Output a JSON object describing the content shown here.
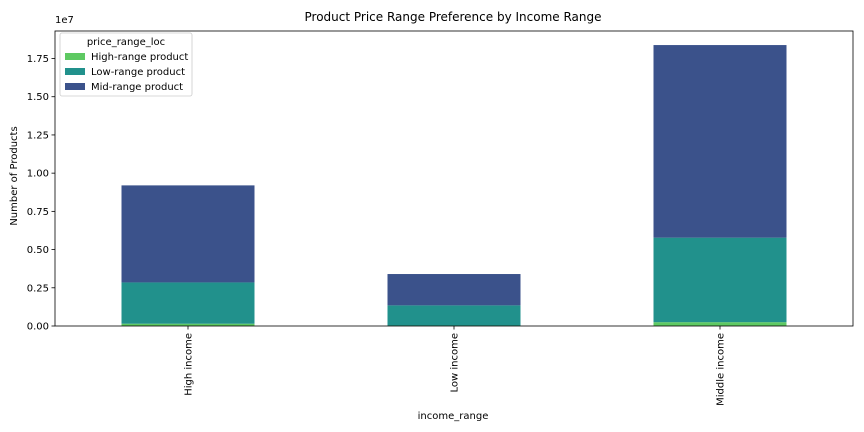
{
  "chart_data": {
    "type": "bar",
    "stacked": true,
    "title": "Product Price Range Preference by Income Range",
    "xlabel": "income_range",
    "ylabel": "Number of Products",
    "y_offset_text": "1e7",
    "ylim": [
      0,
      19300000
    ],
    "yticks": [
      0,
      2500000,
      5000000,
      7500000,
      10000000,
      12500000,
      15000000,
      17500000
    ],
    "ytick_labels": [
      "0.00",
      "0.25",
      "0.50",
      "0.75",
      "1.00",
      "1.25",
      "1.50",
      "1.75"
    ],
    "categories": [
      "High income",
      "Low income",
      "Middle income"
    ],
    "legend_title": "price_range_loc",
    "legend_position": "top-left",
    "grid": false,
    "series": [
      {
        "name": "High-range product",
        "color": "#5ec962",
        "values": [
          150000,
          30000,
          250000
        ]
      },
      {
        "name": "Low-range product",
        "color": "#21918c",
        "values": [
          2700000,
          1320000,
          5530000
        ]
      },
      {
        "name": "Mid-range product",
        "color": "#3b528b",
        "values": [
          6350000,
          2050000,
          12600000
        ]
      }
    ]
  }
}
